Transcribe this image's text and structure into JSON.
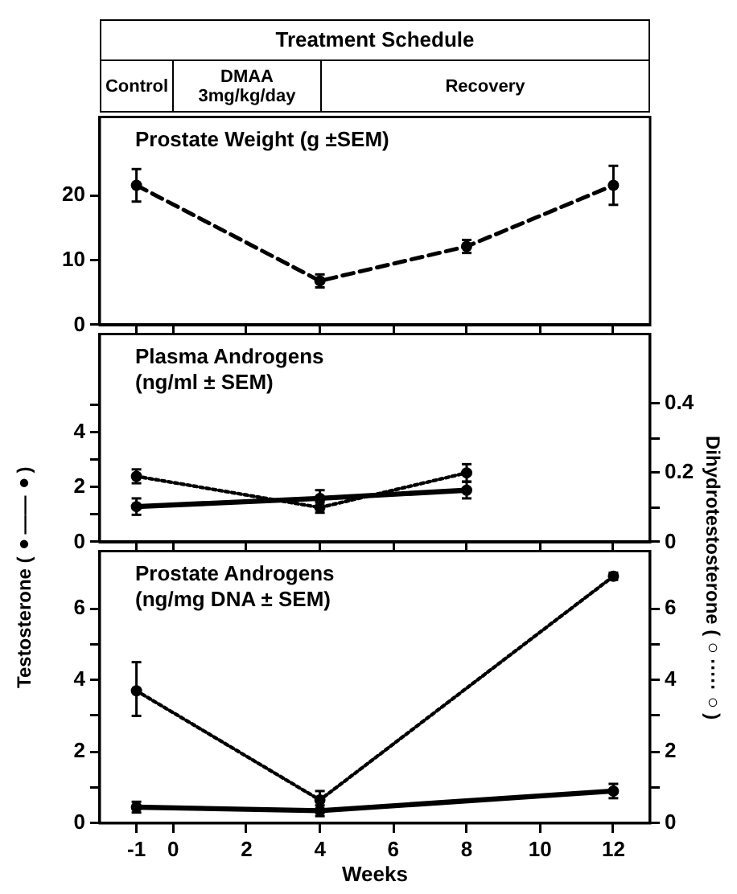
{
  "chart_data": [
    {
      "type": "line",
      "title": "Prostate Weight (g ±SEM)",
      "annotations": [
        "Treatment Schedule",
        "Control",
        "DMAA 3mg/kg/day",
        "Recovery"
      ],
      "xlim": [
        -2,
        13
      ],
      "xticks": [
        {
          "value": -1,
          "label": null
        },
        {
          "value": 0,
          "label": null
        },
        {
          "value": 2,
          "label": null
        },
        {
          "value": 4,
          "label": null
        },
        {
          "value": 6,
          "label": null
        },
        {
          "value": 8,
          "label": null
        },
        {
          "value": 10,
          "label": null
        },
        {
          "value": 12,
          "label": null
        }
      ],
      "ylim": [
        0,
        32
      ],
      "yticks": [
        0,
        10,
        20
      ],
      "tick_labels": "y",
      "marker": "circle",
      "series": [
        {
          "x": [
            -1,
            4,
            8,
            12
          ],
          "values": [
            21.5,
            6.8,
            12.1,
            21.5
          ],
          "errors": [
            2.5,
            1,
            1,
            3
          ],
          "color": "#000000",
          "line_style": "dashed"
        }
      ]
    },
    {
      "type": "line",
      "title": "Plasma Androgens (ng/ml ± SEM)",
      "ylabel": "Testosterone (●——●)",
      "y2label": "Dihydrotestosterone (○·····○)",
      "xlim": [
        -2,
        13
      ],
      "xticks": [
        {
          "value": -1,
          "label": null
        },
        {
          "value": 0,
          "label": null
        },
        {
          "value": 2,
          "label": null
        },
        {
          "value": 4,
          "label": null
        },
        {
          "value": 6,
          "label": null
        },
        {
          "value": 8,
          "label": null
        },
        {
          "value": 10,
          "label": null
        },
        {
          "value": 12,
          "label": null
        }
      ],
      "ylim": [
        0,
        7.6
      ],
      "yticks": [
        0,
        {
          "value": 1,
          "label": null
        },
        2,
        {
          "value": 3,
          "label": null
        },
        4,
        {
          "value": 5,
          "label": null
        }
      ],
      "y2lim": [
        0,
        0.6
      ],
      "y2ticks": [
        0,
        {
          "value": 0.1,
          "label": null
        },
        0.2,
        {
          "value": 0.3,
          "label": null
        },
        0.4
      ],
      "tick_labels": "y",
      "marker": "circle",
      "series": [
        {
          "x": [
            -1,
            4,
            8
          ],
          "values": [
            1.3,
            1.6,
            1.9
          ],
          "errors": [
            0.3,
            0.3,
            0.3
          ],
          "color": "#000000",
          "line_style": "solid"
        },
        {
          "x": [
            -1,
            4,
            8
          ],
          "values": [
            0.19,
            0.1,
            0.2
          ],
          "errors": [
            0.02,
            0.015,
            0.025
          ],
          "color": "#000000",
          "line_style": "dotted",
          "axis": "y2"
        }
      ]
    },
    {
      "type": "line",
      "title": "Prostate Androgens (ng/mg DNA ± SEM)",
      "xlabel": "Weeks",
      "xlim": [
        -2,
        13
      ],
      "xticks": [
        -1,
        0,
        2,
        4,
        6,
        8,
        10,
        12
      ],
      "ylim": [
        0,
        7.6
      ],
      "yticks": [
        0,
        {
          "value": 1,
          "label": null
        },
        2,
        {
          "value": 3,
          "label": null
        },
        4,
        {
          "value": 5,
          "label": null
        },
        6
      ],
      "y2lim": [
        0,
        7.6
      ],
      "y2ticks": [
        0,
        {
          "value": 1,
          "label": null
        },
        2,
        {
          "value": 3,
          "label": null
        },
        4,
        {
          "value": 5,
          "label": null
        },
        6
      ],
      "marker": "circle",
      "series": [
        {
          "x": [
            -1,
            4,
            12
          ],
          "values": [
            0.45,
            0.35,
            0.9
          ],
          "errors": [
            0.15,
            0.15,
            0.2
          ],
          "color": "#000000",
          "line_style": "solid"
        },
        {
          "x": [
            -1,
            4,
            12
          ],
          "values": [
            3.7,
            0.65,
            6.9
          ],
          "errors": [
            [
              3,
              4.5
            ],
            0.25,
            0.1
          ],
          "color": "#000000",
          "line_style": "dotted",
          "axis": "y2"
        }
      ]
    }
  ]
}
